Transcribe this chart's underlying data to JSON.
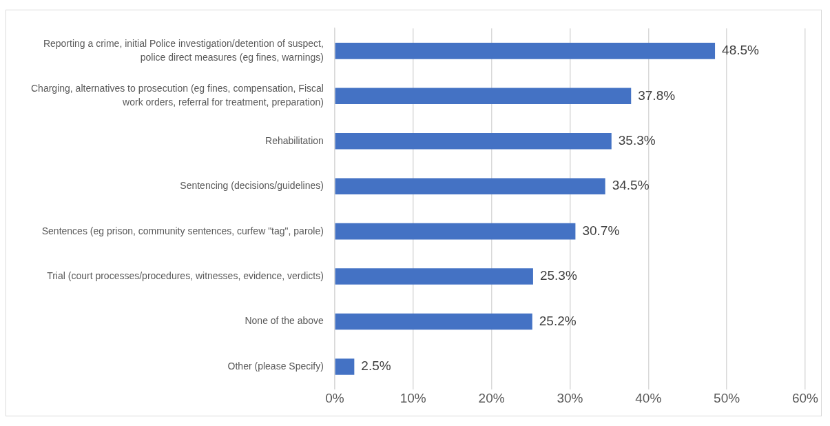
{
  "chart_data": {
    "type": "bar",
    "orientation": "horizontal",
    "categories": [
      "Reporting a crime, initial Police investigation/detention of suspect, police direct measures (eg fines, warnings)",
      "Charging, alternatives to prosecution (eg fines, compensation, Fiscal work orders, referral for treatment, preparation)",
      "Rehabilitation",
      "Sentencing (decisions/guidelines)",
      "Sentences (eg prison, community sentences, curfew \"tag\", parole)",
      "Trial (court processes/procedures, witnesses, evidence, verdicts)",
      "None of the above",
      "Other (please Specify)"
    ],
    "values": [
      48.5,
      37.8,
      35.3,
      34.5,
      30.7,
      25.3,
      25.2,
      2.5
    ],
    "color": "#4472c4",
    "value_labels": [
      "48.5%",
      "37.8%",
      "35.3%",
      "34.5%",
      "30.7%",
      "25.3%",
      "25.2%",
      "2.5%"
    ],
    "xlim": [
      0,
      60
    ],
    "xticks": [
      {
        "value": 0,
        "label": "0%"
      },
      {
        "value": 10,
        "label": "10%"
      },
      {
        "value": 20,
        "label": "20%"
      },
      {
        "value": 30,
        "label": "30%"
      },
      {
        "value": 40,
        "label": "40%"
      },
      {
        "value": 50,
        "label": "50%"
      },
      {
        "value": 60,
        "label": "60%"
      }
    ],
    "grid": "x",
    "legend": false
  }
}
